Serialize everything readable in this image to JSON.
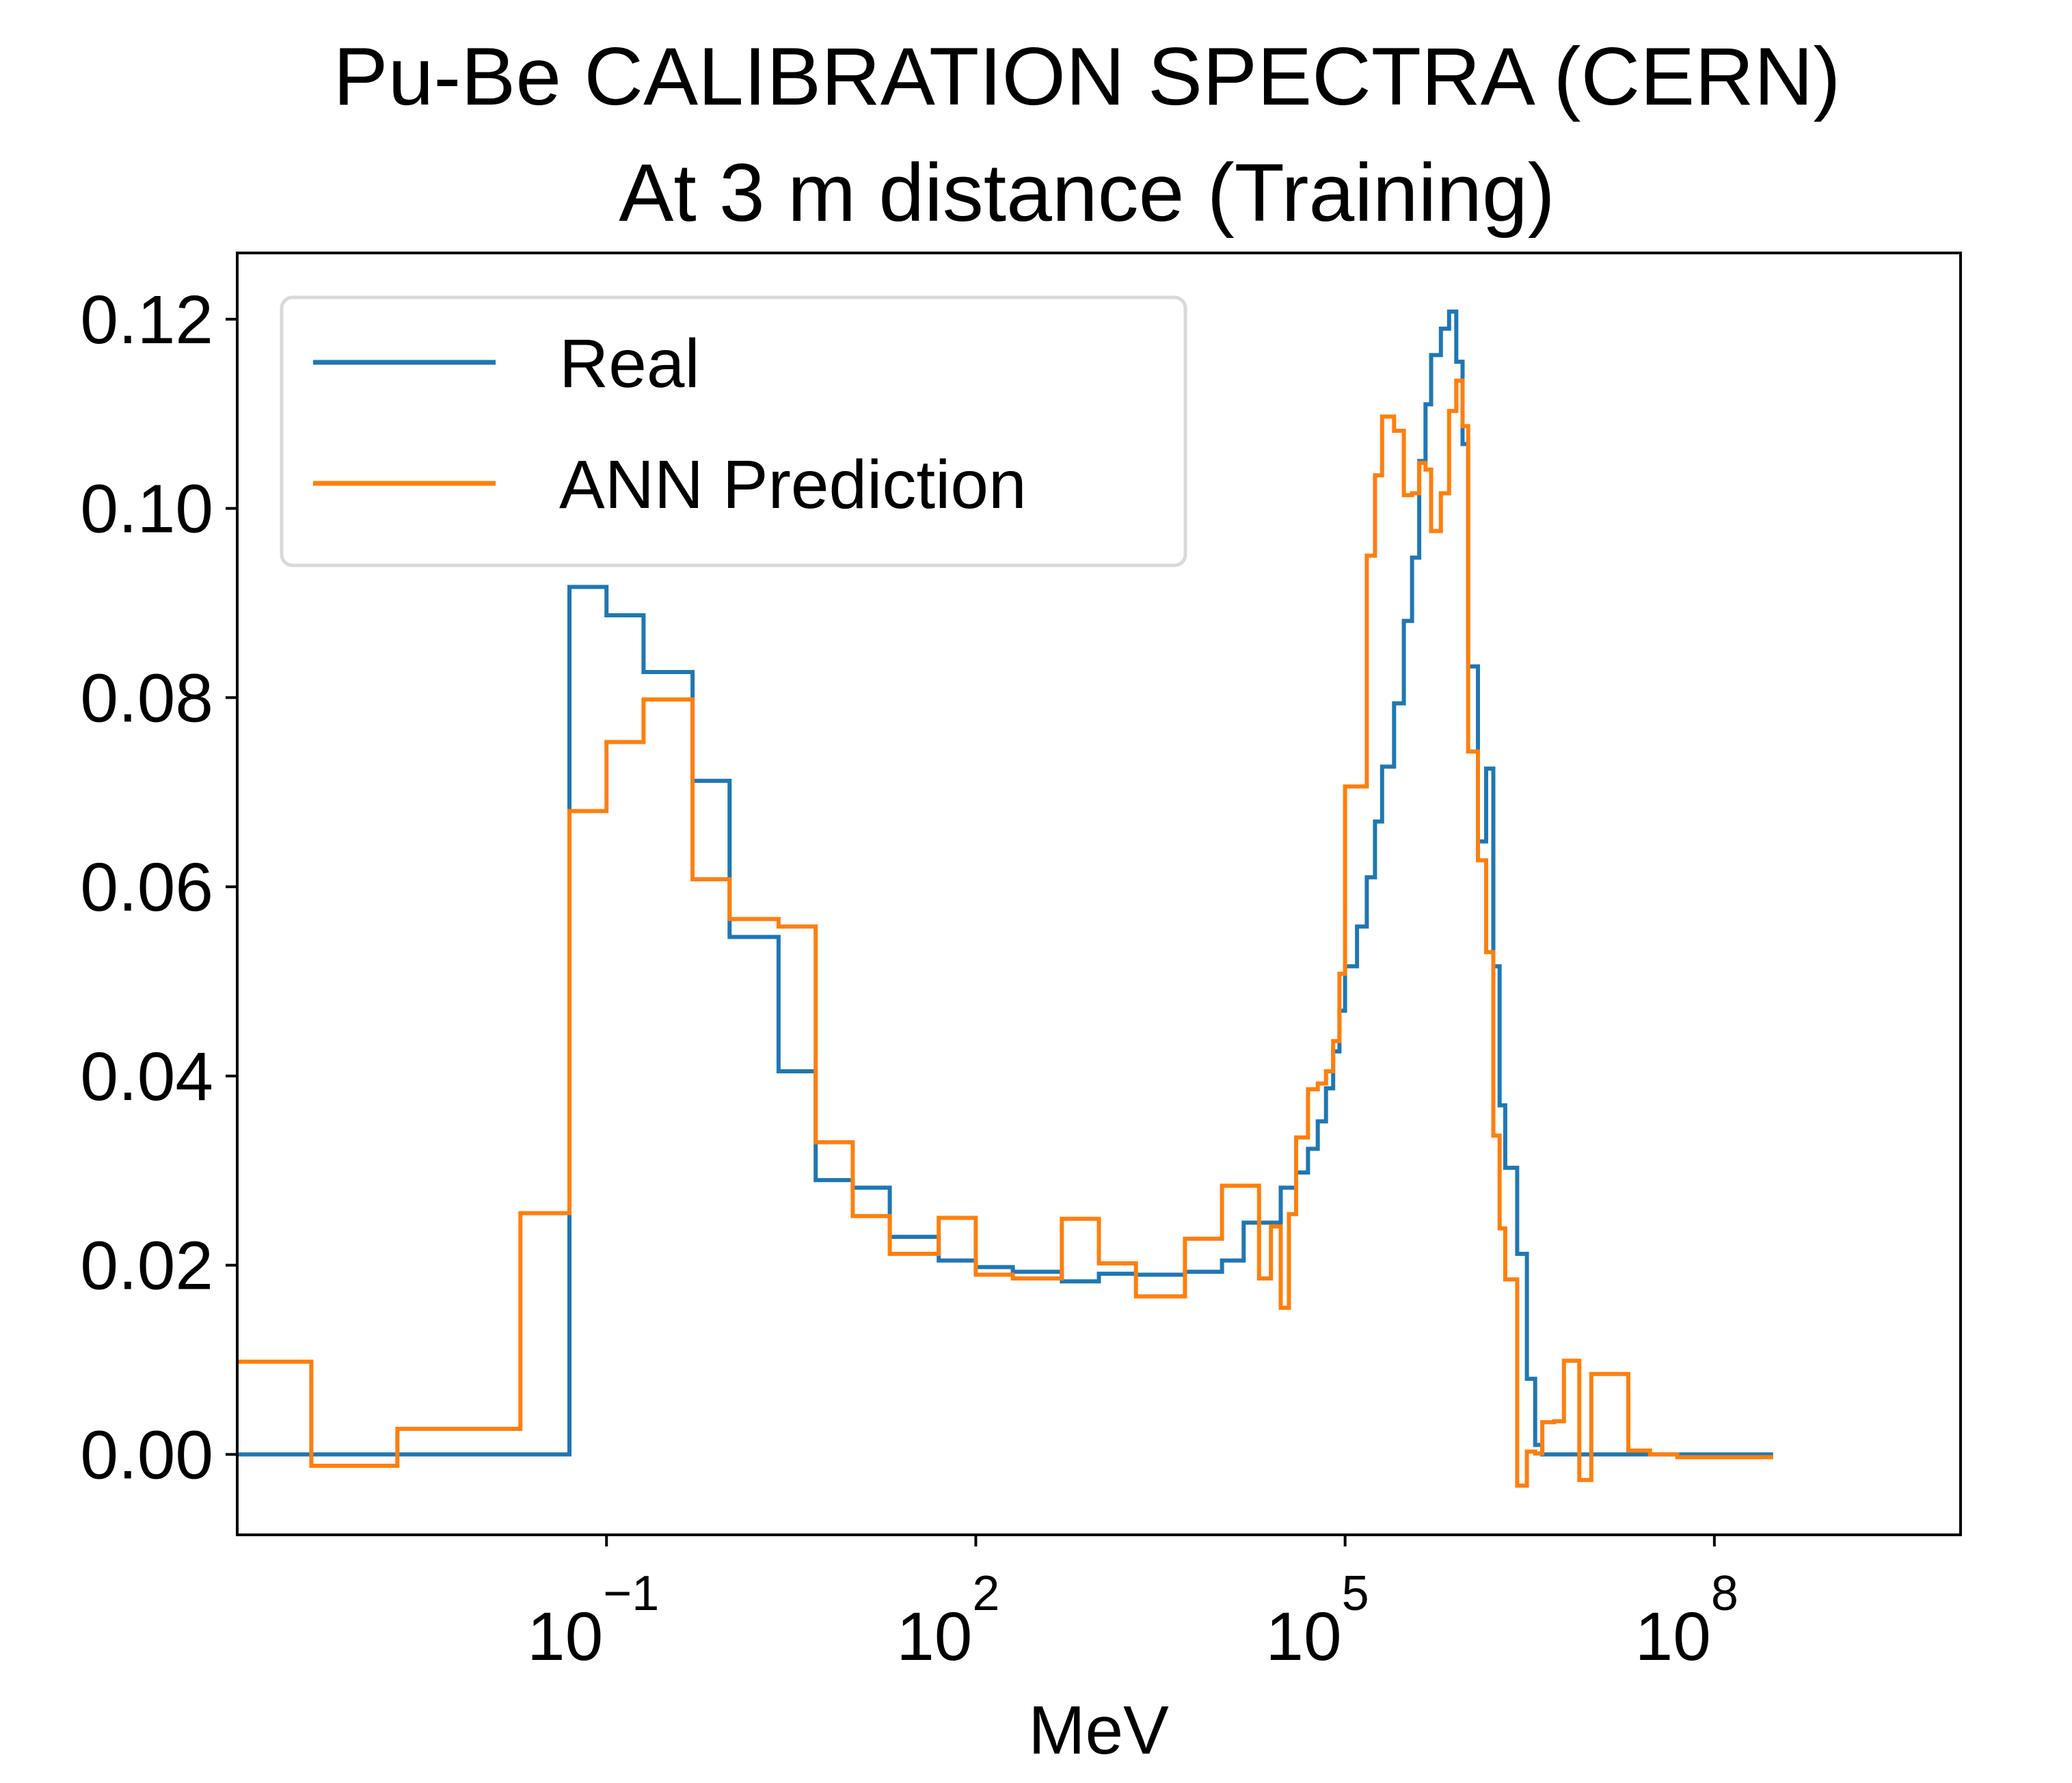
{
  "chart_data": {
    "type": "line",
    "title": [
      "Pu-Be CALIBRATION SPECTRA (CERN)",
      "At 3 m distance (Training)"
    ],
    "xlabel": "MeV",
    "ylabel": "",
    "xscale": "log",
    "xlim": [
      0.0001,
      10000000000.0
    ],
    "ylim": [
      -0.0085,
      0.127
    ],
    "y_ticks": [
      0.0,
      0.02,
      0.04,
      0.06,
      0.08,
      0.1,
      0.12
    ],
    "y_tick_labels": [
      "0.00",
      "0.02",
      "0.04",
      "0.06",
      "0.08",
      "0.10",
      "0.12"
    ],
    "x_ticks": [
      {
        "value": 0.1,
        "base": "10",
        "exp": "−1"
      },
      {
        "value": 100,
        "base": "10",
        "exp": "2"
      },
      {
        "value": 100000,
        "base": "10",
        "exp": "5"
      },
      {
        "value": 100000000,
        "base": "10",
        "exp": "8"
      }
    ],
    "legend": {
      "position": "top-left",
      "entries": [
        "Real",
        "ANN Prediction"
      ]
    },
    "series": [
      {
        "name": "Real",
        "color": "#1f77b4",
        "draw": "steps-post",
        "x": [
          0.0001,
          0.0002,
          0.002,
          0.02,
          0.05,
          0.1,
          0.2,
          0.5,
          1,
          2.5,
          5,
          10,
          20,
          50,
          100,
          200,
          500,
          1000,
          2000,
          5000,
          10000,
          15000,
          20000,
          30000,
          40000,
          50000,
          60000,
          70000,
          80000,
          90000,
          100000,
          125000,
          150000,
          175000,
          200000,
          250000,
          300000,
          350000,
          400000,
          450000,
          500000,
          600000,
          700000,
          800000,
          900000,
          1000000,
          1200000,
          1400000,
          1600000,
          1800000,
          2000000,
          2500000,
          3000000,
          3500000,
          4000000,
          5000000,
          6000000,
          8000000,
          10000000,
          15000000,
          20000000,
          30000000,
          50000000,
          100000000,
          200000000,
          300000000
        ],
        "y": [
          0.0,
          0.0,
          0.0,
          0.0,
          0.0917,
          0.0887,
          0.0827,
          0.0712,
          0.0547,
          0.0405,
          0.029,
          0.0282,
          0.023,
          0.0205,
          0.0198,
          0.0193,
          0.0183,
          0.0191,
          0.019,
          0.0193,
          0.0205,
          0.0245,
          0.0245,
          0.0282,
          0.0298,
          0.0323,
          0.0352,
          0.0387,
          0.0426,
          0.0469,
          0.0516,
          0.0558,
          0.061,
          0.0669,
          0.0727,
          0.0794,
          0.0881,
          0.0948,
          0.105,
          0.111,
          0.1162,
          0.119,
          0.1208,
          0.1155,
          0.1068,
          0.0833,
          0.0648,
          0.0725,
          0.0516,
          0.0369,
          0.0303,
          0.0212,
          0.008,
          0.001,
          0.0,
          0.0,
          0.0,
          0.0,
          0.0,
          0.0,
          0.0,
          0.0,
          0.0,
          0.0,
          0.0,
          0.0
        ]
      },
      {
        "name": "ANN Prediction",
        "color": "#ff7f0e",
        "draw": "steps-post",
        "x": [
          0.0001,
          0.0002,
          0.0004,
          0.0008,
          0.002,
          0.02,
          0.05,
          0.1,
          0.2,
          0.5,
          1,
          2.5,
          5,
          10,
          20,
          50,
          100,
          200,
          500,
          1000,
          2000,
          5000,
          10000,
          15000,
          20000,
          25000,
          30000,
          35000,
          40000,
          50000,
          60000,
          70000,
          80000,
          90000,
          100000,
          125000,
          150000,
          175000,
          200000,
          250000,
          300000,
          350000,
          400000,
          450000,
          500000,
          600000,
          700000,
          800000,
          900000,
          1000000,
          1200000,
          1400000,
          1600000,
          1800000,
          2000000,
          2500000,
          3000000,
          3500000,
          4000000,
          5000000,
          6000000,
          8000000,
          10000000,
          15000000,
          20000000,
          30000000,
          50000000,
          100000000,
          200000000,
          300000000
        ],
        "y": [
          0.0098,
          0.0098,
          -0.0012,
          -0.0012,
          0.0027,
          0.0255,
          0.068,
          0.0753,
          0.0798,
          0.0608,
          0.0566,
          0.0558,
          0.033,
          0.0252,
          0.0212,
          0.025,
          0.019,
          0.0186,
          0.0249,
          0.0202,
          0.0167,
          0.0228,
          0.0284,
          0.0284,
          0.0186,
          0.0241,
          0.0155,
          0.0254,
          0.0335,
          0.0386,
          0.0392,
          0.0405,
          0.0437,
          0.0508,
          0.0706,
          0.0706,
          0.095,
          0.1035,
          0.1097,
          0.1082,
          0.1014,
          0.1016,
          0.1048,
          0.1041,
          0.0976,
          0.1016,
          0.1103,
          0.1135,
          0.1087,
          0.0743,
          0.0628,
          0.0531,
          0.0337,
          0.0239,
          0.0185,
          -0.0033,
          0.0003,
          0.0001,
          0.0034,
          0.0035,
          0.0099,
          -0.0027,
          0.0085,
          0.0085,
          0.0004,
          0.0,
          -0.0003,
          -0.0003,
          -0.0003,
          -0.0003
        ]
      }
    ]
  }
}
